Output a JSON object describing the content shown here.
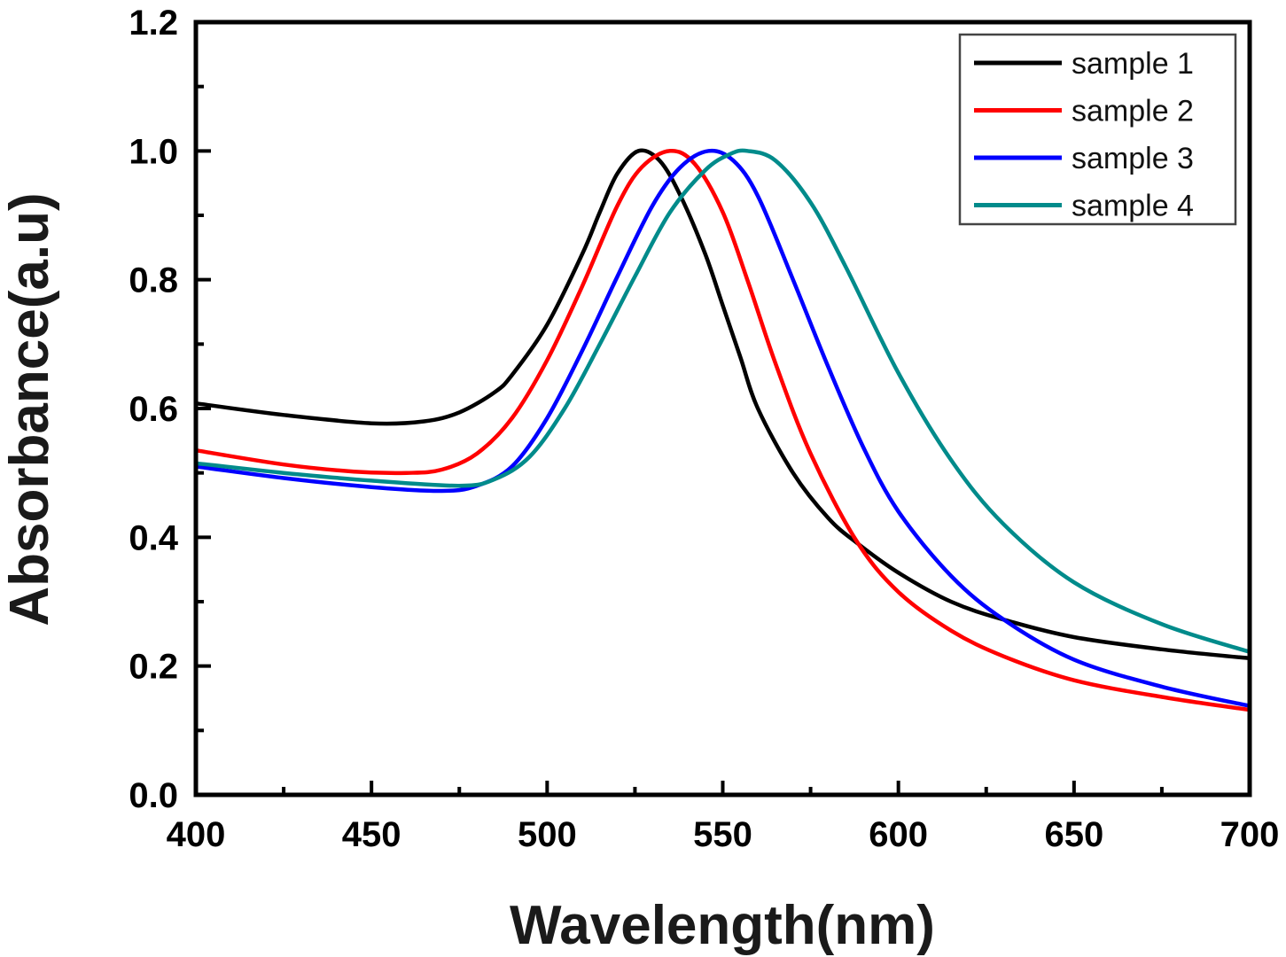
{
  "chart_data": {
    "type": "line",
    "title": "",
    "xlabel": "Wavelength(nm)",
    "ylabel": "Absorbance(a.u)",
    "xlim": [
      400,
      700
    ],
    "ylim": [
      0.0,
      1.2
    ],
    "x_ticks": [
      400,
      450,
      500,
      550,
      600,
      650,
      700
    ],
    "x_tick_labels": [
      "400",
      "450",
      "500",
      "550",
      "600",
      "650",
      "700"
    ],
    "x_minor_step": 25,
    "y_ticks": [
      0.0,
      0.2,
      0.4,
      0.6,
      0.8,
      1.0,
      1.2
    ],
    "y_tick_labels": [
      "0.0",
      "0.2",
      "0.4",
      "0.6",
      "0.8",
      "1.0",
      "1.2"
    ],
    "y_minor_step": 0.1,
    "grid": false,
    "legend_position": "top-right",
    "series": [
      {
        "name": "sample 1",
        "color": "#000000",
        "x": [
          400,
          425,
          450,
          465,
          475,
          485,
          490,
          500,
          510,
          515,
          520,
          526,
          532,
          538,
          545,
          550,
          555,
          560,
          570,
          580,
          588,
          600,
          615,
          630,
          650,
          675,
          700
        ],
        "y": [
          0.608,
          0.59,
          0.577,
          0.58,
          0.594,
          0.625,
          0.652,
          0.73,
          0.84,
          0.905,
          0.965,
          1.0,
          0.985,
          0.93,
          0.84,
          0.76,
          0.68,
          0.6,
          0.5,
          0.43,
          0.392,
          0.345,
          0.3,
          0.272,
          0.245,
          0.226,
          0.212
        ]
      },
      {
        "name": "sample 2",
        "color": "#ff0000",
        "x": [
          400,
          425,
          445,
          460,
          470,
          480,
          490,
          500,
          510,
          520,
          527,
          535,
          542,
          550,
          557,
          565,
          575,
          588,
          600,
          615,
          630,
          650,
          675,
          700
        ],
        "y": [
          0.535,
          0.513,
          0.502,
          0.5,
          0.505,
          0.53,
          0.585,
          0.675,
          0.79,
          0.915,
          0.975,
          1.0,
          0.98,
          0.905,
          0.8,
          0.67,
          0.53,
          0.395,
          0.315,
          0.255,
          0.215,
          0.178,
          0.152,
          0.132
        ]
      },
      {
        "name": "sample 3",
        "color": "#0000ff",
        "x": [
          400,
          425,
          450,
          470,
          480,
          490,
          500,
          510,
          520,
          530,
          538,
          546,
          553,
          560,
          570,
          580,
          590,
          600,
          615,
          630,
          650,
          675,
          700
        ],
        "y": [
          0.51,
          0.492,
          0.478,
          0.472,
          0.48,
          0.51,
          0.585,
          0.69,
          0.805,
          0.915,
          0.975,
          1.0,
          0.985,
          0.93,
          0.8,
          0.665,
          0.54,
          0.44,
          0.34,
          0.272,
          0.21,
          0.168,
          0.138
        ]
      },
      {
        "name": "sample 4",
        "color": "#008b8b",
        "x": [
          400,
          425,
          450,
          475,
          485,
          495,
          505,
          515,
          525,
          535,
          545,
          552,
          557,
          565,
          575,
          585,
          600,
          615,
          630,
          650,
          675,
          700
        ],
        "y": [
          0.515,
          0.5,
          0.488,
          0.48,
          0.49,
          0.525,
          0.6,
          0.7,
          0.805,
          0.905,
          0.97,
          0.995,
          1.0,
          0.985,
          0.92,
          0.82,
          0.655,
          0.52,
          0.42,
          0.33,
          0.265,
          0.222
        ]
      }
    ]
  }
}
